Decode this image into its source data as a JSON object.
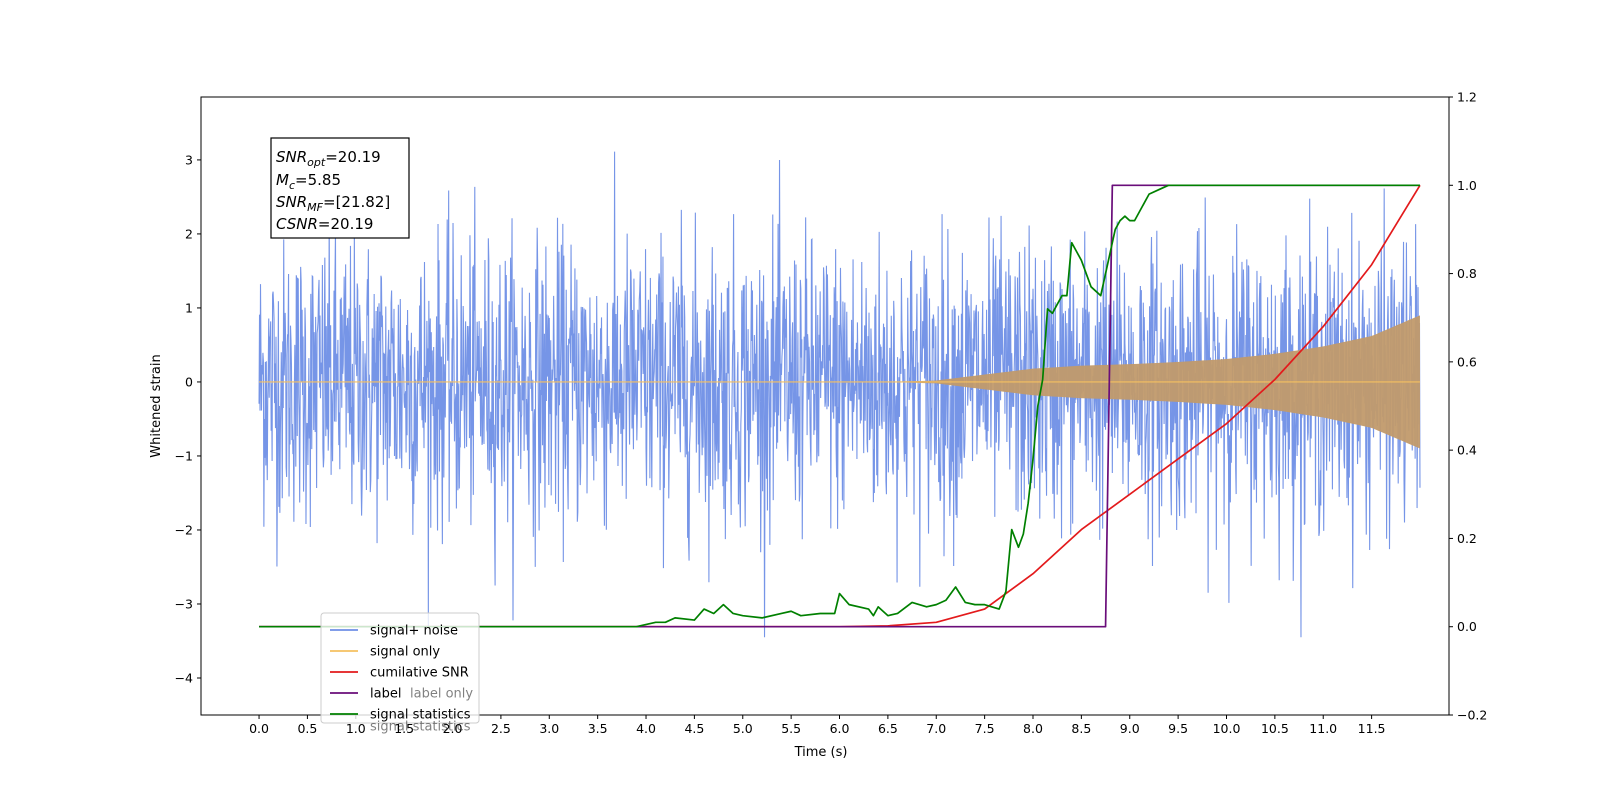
{
  "chart_data": {
    "type": "line",
    "title": "",
    "xlabel": "Time (s)",
    "ylabel": "Whitened strain",
    "xlim": [
      -0.6,
      12.3
    ],
    "ylim": [
      -4.5,
      3.85
    ],
    "y2lim": [
      -0.2,
      1.2
    ],
    "x_ticks": [
      "0.0",
      "0.5",
      "1.0",
      "1.5",
      "2.0",
      "2.5",
      "3.0",
      "3.5",
      "4.0",
      "4.5",
      "5.0",
      "5.5",
      "6.0",
      "6.5",
      "7.0",
      "7.5",
      "8.0",
      "8.5",
      "9.0",
      "9.5",
      "10.0",
      "10.5",
      "11.0",
      "11.5"
    ],
    "y_ticks": [
      "3",
      "2",
      "1",
      "0",
      "−1",
      "−2",
      "−3",
      "−4"
    ],
    "y2_ticks": [
      "1.2",
      "1.0",
      "0.8",
      "0.6",
      "0.4",
      "0.2",
      "0.0",
      "−0.2"
    ],
    "grid": false,
    "legend_position": "lower-left",
    "series": [
      {
        "name": "signal+ noise",
        "axis": "left",
        "color": "#6f8fe6",
        "style": "noise",
        "x_range": [
          0.0,
          12.0
        ],
        "typical_amplitude": 1.2,
        "peak_amplitude": 3.45
      },
      {
        "name": "signal only",
        "axis": "left",
        "color": "#f5c060",
        "style": "chirp-envelope",
        "envelope": {
          "x": [
            0.0,
            6.5,
            7.0,
            7.5,
            8.0,
            8.5,
            9.0,
            9.5,
            10.0,
            10.5,
            11.0,
            11.5,
            12.0
          ],
          "y": [
            0.0,
            0.0,
            0.02,
            0.1,
            0.18,
            0.22,
            0.24,
            0.27,
            0.31,
            0.38,
            0.48,
            0.62,
            0.9
          ]
        }
      },
      {
        "name": "cumilative SNR",
        "axis": "right",
        "color": "#e31a1c",
        "x": [
          0.0,
          6.0,
          6.5,
          7.0,
          7.5,
          8.0,
          8.5,
          9.0,
          9.5,
          10.0,
          10.5,
          11.0,
          11.5,
          12.0
        ],
        "y": [
          0.0,
          0.0,
          0.002,
          0.01,
          0.04,
          0.12,
          0.22,
          0.3,
          0.38,
          0.46,
          0.56,
          0.68,
          0.82,
          1.0
        ]
      },
      {
        "name": "label",
        "axis": "right",
        "color": "#6a0d7a",
        "x": [
          0.0,
          8.75,
          8.82,
          12.0
        ],
        "y": [
          0.0,
          0.0,
          1.0,
          1.0
        ]
      },
      {
        "name": "signal statistics",
        "axis": "right",
        "color": "#008000",
        "x": [
          0.0,
          3.9,
          4.1,
          4.2,
          4.3,
          4.5,
          4.6,
          4.7,
          4.8,
          4.9,
          5.0,
          5.2,
          5.4,
          5.5,
          5.6,
          5.8,
          5.95,
          6.0,
          6.1,
          6.3,
          6.35,
          6.4,
          6.5,
          6.6,
          6.75,
          6.9,
          7.0,
          7.1,
          7.2,
          7.3,
          7.4,
          7.5,
          7.65,
          7.72,
          7.78,
          7.85,
          7.9,
          7.95,
          8.0,
          8.05,
          8.1,
          8.15,
          8.2,
          8.25,
          8.3,
          8.35,
          8.4,
          8.45,
          8.5,
          8.55,
          8.6,
          8.7,
          8.75,
          8.8,
          8.85,
          8.9,
          8.95,
          9.0,
          9.05,
          9.1,
          9.15,
          9.2,
          9.3,
          9.4,
          9.5,
          9.6,
          12.0
        ],
        "y": [
          0.0,
          0.0,
          0.01,
          0.01,
          0.02,
          0.015,
          0.04,
          0.03,
          0.05,
          0.03,
          0.025,
          0.02,
          0.03,
          0.035,
          0.025,
          0.03,
          0.03,
          0.075,
          0.05,
          0.04,
          0.025,
          0.045,
          0.025,
          0.03,
          0.055,
          0.045,
          0.05,
          0.06,
          0.09,
          0.055,
          0.05,
          0.05,
          0.04,
          0.08,
          0.22,
          0.18,
          0.21,
          0.28,
          0.38,
          0.5,
          0.56,
          0.72,
          0.71,
          0.73,
          0.75,
          0.75,
          0.87,
          0.85,
          0.83,
          0.8,
          0.77,
          0.75,
          0.8,
          0.85,
          0.9,
          0.92,
          0.93,
          0.92,
          0.92,
          0.94,
          0.96,
          0.98,
          0.99,
          1.0,
          1.0,
          1.0,
          1.0
        ]
      }
    ]
  },
  "infobox": {
    "line1_main": "SNR",
    "line1_sub": "opt",
    "line1_value": "=20.19",
    "line2_main": "M",
    "line2_sub": "c",
    "line2_value": "=5.85",
    "line3_main": "SNR",
    "line3_sub": "MF",
    "line3_value": "=[21.82]",
    "line4_main": "CSNR",
    "line4_value": "=20.19"
  },
  "legend": {
    "items": [
      {
        "label": "signal+ noise",
        "color": "#6f8fe6"
      },
      {
        "label": "signal only",
        "color": "#f5c060"
      },
      {
        "label": "cumilative SNR",
        "color": "#e31a1c"
      },
      {
        "label": "label",
        "color": "#6a0d7a"
      },
      {
        "label": "signal statistics",
        "color": "#008000"
      }
    ],
    "hidden_labels": [
      "label only",
      "signal statistics"
    ]
  }
}
